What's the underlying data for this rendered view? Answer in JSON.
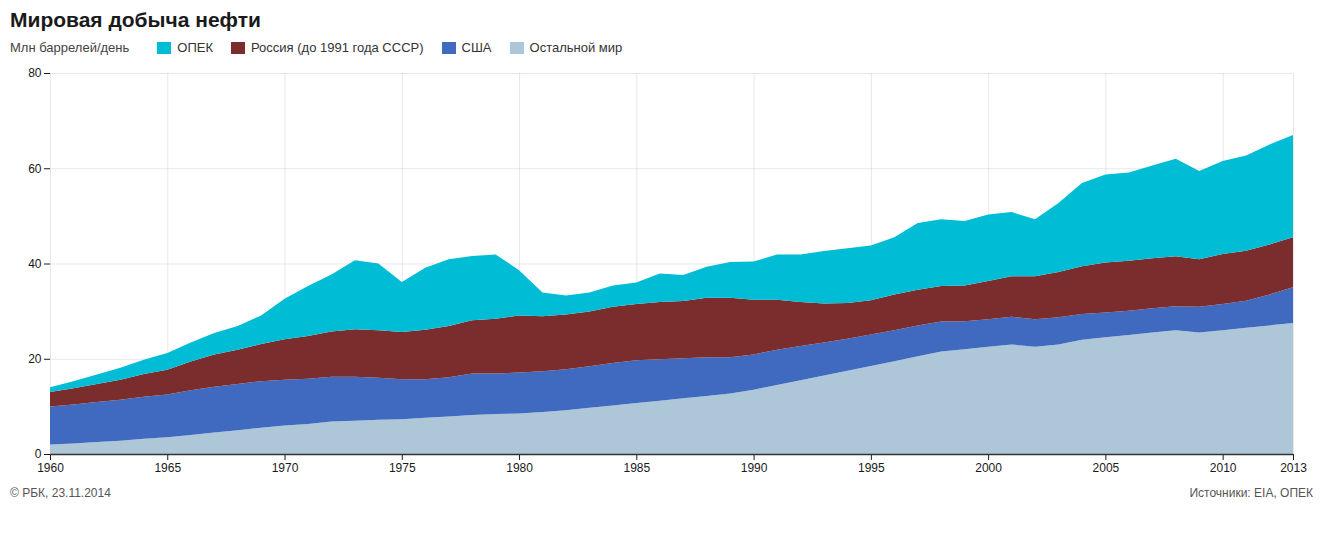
{
  "chart_data": {
    "type": "area",
    "stacked": true,
    "title": "Мировая добыча нефти",
    "ylabel": "Млн баррелей/день",
    "x": [
      1960,
      1961,
      1962,
      1963,
      1964,
      1965,
      1966,
      1967,
      1968,
      1969,
      1970,
      1971,
      1972,
      1973,
      1974,
      1975,
      1976,
      1977,
      1978,
      1979,
      1980,
      1981,
      1982,
      1983,
      1984,
      1985,
      1986,
      1987,
      1988,
      1989,
      1990,
      1991,
      1992,
      1993,
      1994,
      1995,
      1996,
      1997,
      1998,
      1999,
      2000,
      2001,
      2002,
      2003,
      2004,
      2005,
      2006,
      2007,
      2008,
      2009,
      2010,
      2011,
      2012,
      2013
    ],
    "series": [
      {
        "name": "Остальной мир",
        "color": "#adc6d8",
        "values": [
          2.0,
          2.2,
          2.5,
          2.8,
          3.2,
          3.5,
          4.0,
          4.5,
          5.0,
          5.5,
          6.0,
          6.3,
          6.8,
          7.0,
          7.2,
          7.3,
          7.6,
          7.9,
          8.2,
          8.4,
          8.5,
          8.8,
          9.2,
          9.7,
          10.2,
          10.7,
          11.2,
          11.7,
          12.2,
          12.7,
          13.5,
          14.5,
          15.5,
          16.5,
          17.5,
          18.5,
          19.5,
          20.5,
          21.5,
          22.0,
          22.5,
          23.0,
          22.5,
          23.0,
          24.0,
          24.5,
          25.0,
          25.5,
          26.0,
          25.5,
          26.0,
          26.5,
          27.0,
          27.5
        ]
      },
      {
        "name": "США",
        "color": "#3f6abf",
        "values": [
          8.0,
          8.2,
          8.4,
          8.6,
          8.8,
          9.0,
          9.4,
          9.6,
          9.7,
          9.8,
          9.6,
          9.5,
          9.4,
          9.2,
          8.8,
          8.4,
          8.1,
          8.2,
          8.7,
          8.5,
          8.6,
          8.6,
          8.6,
          8.7,
          8.9,
          9.0,
          8.7,
          8.4,
          8.1,
          7.6,
          7.4,
          7.4,
          7.2,
          6.9,
          6.7,
          6.6,
          6.5,
          6.5,
          6.3,
          5.9,
          5.8,
          5.8,
          5.8,
          5.7,
          5.4,
          5.2,
          5.1,
          5.1,
          5.0,
          5.4,
          5.5,
          5.7,
          6.5,
          7.5
        ]
      },
      {
        "name": "Россия (до 1991 года СССР)",
        "color": "#7b2d2d",
        "values": [
          3.0,
          3.4,
          3.8,
          4.2,
          4.8,
          5.2,
          6.0,
          6.8,
          7.2,
          7.8,
          8.5,
          9.0,
          9.5,
          10.0,
          10.0,
          9.9,
          10.4,
          10.8,
          11.2,
          11.5,
          12.0,
          11.5,
          11.5,
          11.5,
          11.8,
          11.8,
          12.0,
          12.0,
          12.5,
          12.5,
          11.5,
          10.5,
          9.2,
          8.2,
          7.5,
          7.2,
          7.5,
          7.5,
          7.5,
          7.5,
          8.0,
          8.5,
          9.0,
          9.5,
          10.0,
          10.5,
          10.5,
          10.5,
          10.5,
          10.0,
          10.5,
          10.5,
          10.5,
          10.5
        ]
      },
      {
        "name": "ОПЕК",
        "color": "#00bcd4",
        "values": [
          1.0,
          1.5,
          2.0,
          2.5,
          3.0,
          3.5,
          4.0,
          4.5,
          5.0,
          6.0,
          8.5,
          10.5,
          12.0,
          14.5,
          14.0,
          10.5,
          13.0,
          14.0,
          13.5,
          13.5,
          9.5,
          5.0,
          4.0,
          4.0,
          4.5,
          4.5,
          6.0,
          5.5,
          6.5,
          7.5,
          8.0,
          9.5,
          10.0,
          11.0,
          11.5,
          11.5,
          12.0,
          14.0,
          14.0,
          13.5,
          14.0,
          13.5,
          12.0,
          14.5,
          17.5,
          18.5,
          18.5,
          19.5,
          20.5,
          18.5,
          19.5,
          20.0,
          21.0,
          21.5
        ]
      }
    ],
    "xlim": [
      1960,
      2013
    ],
    "xticks": [
      1960,
      1965,
      1970,
      1975,
      1980,
      1985,
      1990,
      1995,
      2000,
      2005,
      2010,
      2013
    ],
    "ylim": [
      0,
      80
    ],
    "yticks": [
      0,
      20,
      40,
      60,
      80
    ],
    "grid": true,
    "legend": "top",
    "annotations": [
      "© РБК, 23.11.2014",
      "Источники: EIA, ОПЕК"
    ]
  }
}
